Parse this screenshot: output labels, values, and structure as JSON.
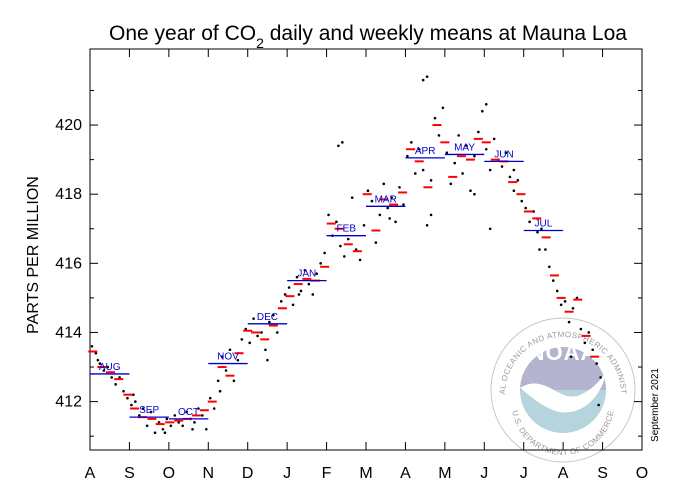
{
  "chart_data": {
    "type": "scatter",
    "title_prefix": "One year of CO",
    "title_sub": "2",
    "title_suffix": " daily and weekly means at Mauna Loa",
    "ylabel": "PARTS PER MILLION",
    "xlabel": "",
    "ylim": [
      410.6,
      422.2
    ],
    "yticks": [
      412,
      414,
      416,
      418,
      420
    ],
    "x_ticks": [
      "A",
      "S",
      "O",
      "N",
      "D",
      "J",
      "F",
      "M",
      "A",
      "M",
      "J",
      "J",
      "A",
      "S",
      "O"
    ],
    "monthly_means": [
      {
        "label": "AUG",
        "start": 0.0,
        "end": 1.0,
        "value": 412.8
      },
      {
        "label": "SEP",
        "start": 1.0,
        "end": 2.0,
        "value": 411.55
      },
      {
        "label": "OCT",
        "start": 2.0,
        "end": 3.0,
        "value": 411.5
      },
      {
        "label": "NOV",
        "start": 3.0,
        "end": 4.0,
        "value": 413.1
      },
      {
        "label": "DEC",
        "start": 4.0,
        "end": 5.0,
        "value": 414.25
      },
      {
        "label": "JAN",
        "start": 5.0,
        "end": 6.0,
        "value": 415.5
      },
      {
        "label": "FEB",
        "start": 6.0,
        "end": 7.0,
        "value": 416.8
      },
      {
        "label": "MAR",
        "start": 7.0,
        "end": 8.0,
        "value": 417.65
      },
      {
        "label": "APR",
        "start": 8.0,
        "end": 9.0,
        "value": 419.05
      },
      {
        "label": "MAY",
        "start": 9.0,
        "end": 10.0,
        "value": 419.15
      },
      {
        "label": "JUN",
        "start": 10.0,
        "end": 11.0,
        "value": 418.95
      },
      {
        "label": "JUL",
        "start": 11.0,
        "end": 12.0,
        "value": 416.95
      }
    ],
    "weekly_means": [
      [
        0.07,
        413.45
      ],
      [
        0.3,
        413.0
      ],
      [
        0.52,
        412.85
      ],
      [
        0.73,
        412.65
      ],
      [
        0.96,
        412.2
      ],
      [
        1.13,
        411.8
      ],
      [
        1.33,
        411.55
      ],
      [
        1.57,
        411.5
      ],
      [
        1.78,
        411.35
      ],
      [
        2.02,
        411.4
      ],
      [
        2.25,
        411.45
      ],
      [
        2.47,
        411.5
      ],
      [
        2.7,
        411.6
      ],
      [
        2.9,
        411.75
      ],
      [
        3.1,
        412.0
      ],
      [
        3.35,
        413.0
      ],
      [
        3.55,
        412.75
      ],
      [
        3.78,
        413.4
      ],
      [
        4.0,
        414.05
      ],
      [
        4.2,
        414.0
      ],
      [
        4.43,
        413.8
      ],
      [
        4.65,
        414.2
      ],
      [
        4.88,
        414.7
      ],
      [
        5.07,
        415.05
      ],
      [
        5.28,
        415.4
      ],
      [
        5.5,
        415.55
      ],
      [
        5.72,
        415.5
      ],
      [
        5.95,
        415.9
      ],
      [
        6.12,
        417.15
      ],
      [
        6.32,
        417.0
      ],
      [
        6.55,
        416.55
      ],
      [
        6.78,
        416.35
      ],
      [
        7.03,
        418.0
      ],
      [
        7.25,
        416.95
      ],
      [
        7.45,
        417.85
      ],
      [
        7.7,
        417.7
      ],
      [
        7.93,
        418.05
      ],
      [
        8.13,
        419.3
      ],
      [
        8.35,
        418.95
      ],
      [
        8.57,
        418.2
      ],
      [
        8.8,
        420.0
      ],
      [
        9.0,
        419.5
      ],
      [
        9.2,
        418.5
      ],
      [
        9.42,
        419.1
      ],
      [
        9.65,
        419.0
      ],
      [
        9.85,
        419.6
      ],
      [
        10.05,
        419.5
      ],
      [
        10.28,
        419.0
      ],
      [
        10.5,
        418.95
      ],
      [
        10.72,
        418.35
      ],
      [
        10.93,
        418.0
      ],
      [
        11.12,
        417.5
      ],
      [
        11.33,
        417.3
      ],
      [
        11.57,
        416.75
      ],
      [
        11.78,
        415.65
      ],
      [
        11.95,
        415.0
      ],
      [
        12.15,
        414.6
      ],
      [
        12.37,
        414.95
      ],
      [
        12.58,
        413.9
      ],
      [
        12.8,
        413.3
      ]
    ],
    "daily_means": [
      [
        0.05,
        413.6
      ],
      [
        0.15,
        413.4
      ],
      [
        0.25,
        413.1
      ],
      [
        0.35,
        412.9
      ],
      [
        0.45,
        413.0
      ],
      [
        0.55,
        412.7
      ],
      [
        0.65,
        412.5
      ],
      [
        0.75,
        412.7
      ],
      [
        0.85,
        412.3
      ],
      [
        0.95,
        412.1
      ],
      [
        1.05,
        411.9
      ],
      [
        1.15,
        412.0
      ],
      [
        1.25,
        411.6
      ],
      [
        1.35,
        411.8
      ],
      [
        1.45,
        411.3
      ],
      [
        1.55,
        411.7
      ],
      [
        1.65,
        411.1
      ],
      [
        1.75,
        411.4
      ],
      [
        1.85,
        411.2
      ],
      [
        1.95,
        411.5
      ],
      [
        2.05,
        411.3
      ],
      [
        2.15,
        411.6
      ],
      [
        2.25,
        411.4
      ],
      [
        2.35,
        411.3
      ],
      [
        2.45,
        411.7
      ],
      [
        2.55,
        411.5
      ],
      [
        2.65,
        411.4
      ],
      [
        2.75,
        411.8
      ],
      [
        2.85,
        411.6
      ],
      [
        2.95,
        411.2
      ],
      [
        3.05,
        412.1
      ],
      [
        3.15,
        411.8
      ],
      [
        3.25,
        412.6
      ],
      [
        3.35,
        413.3
      ],
      [
        3.45,
        412.9
      ],
      [
        3.55,
        413.5
      ],
      [
        3.65,
        412.6
      ],
      [
        3.75,
        413.2
      ],
      [
        3.85,
        413.8
      ],
      [
        3.95,
        414.1
      ],
      [
        4.05,
        413.7
      ],
      [
        4.15,
        414.4
      ],
      [
        4.25,
        413.9
      ],
      [
        4.35,
        414.0
      ],
      [
        4.45,
        413.5
      ],
      [
        4.55,
        414.3
      ],
      [
        4.65,
        414.5
      ],
      [
        4.75,
        414.0
      ],
      [
        4.85,
        414.9
      ],
      [
        4.95,
        415.1
      ],
      [
        5.05,
        415.3
      ],
      [
        5.15,
        414.8
      ],
      [
        5.25,
        415.6
      ],
      [
        5.35,
        415.2
      ],
      [
        5.45,
        415.8
      ],
      [
        5.55,
        415.4
      ],
      [
        5.65,
        415.1
      ],
      [
        5.75,
        415.7
      ],
      [
        5.85,
        416.0
      ],
      [
        5.95,
        416.3
      ],
      [
        6.05,
        417.4
      ],
      [
        6.15,
        416.8
      ],
      [
        6.25,
        417.2
      ],
      [
        6.35,
        416.5
      ],
      [
        6.45,
        416.2
      ],
      [
        6.55,
        416.7
      ],
      [
        6.65,
        417.9
      ],
      [
        6.75,
        416.4
      ],
      [
        6.85,
        416.1
      ],
      [
        6.95,
        417.1
      ],
      [
        7.05,
        418.1
      ],
      [
        7.15,
        417.8
      ],
      [
        7.25,
        416.6
      ],
      [
        7.35,
        417.4
      ],
      [
        7.45,
        418.3
      ],
      [
        7.55,
        417.6
      ],
      [
        7.65,
        417.9
      ],
      [
        7.75,
        417.2
      ],
      [
        7.85,
        418.2
      ],
      [
        7.95,
        417.7
      ],
      [
        8.05,
        419.1
      ],
      [
        8.15,
        419.5
      ],
      [
        8.25,
        418.6
      ],
      [
        8.35,
        419.3
      ],
      [
        8.45,
        418.7
      ],
      [
        8.55,
        417.1
      ],
      [
        8.65,
        418.4
      ],
      [
        8.75,
        420.2
      ],
      [
        8.85,
        419.7
      ],
      [
        8.95,
        420.5
      ],
      [
        9.05,
        419.2
      ],
      [
        9.15,
        418.3
      ],
      [
        9.25,
        418.9
      ],
      [
        9.35,
        419.7
      ],
      [
        9.45,
        418.6
      ],
      [
        9.55,
        419.4
      ],
      [
        9.65,
        418.1
      ],
      [
        9.75,
        419.1
      ],
      [
        9.85,
        419.8
      ],
      [
        9.95,
        420.4
      ],
      [
        10.05,
        419.3
      ],
      [
        10.15,
        418.7
      ],
      [
        10.25,
        419.6
      ],
      [
        10.35,
        419.0
      ],
      [
        10.45,
        418.8
      ],
      [
        10.55,
        419.2
      ],
      [
        10.65,
        418.5
      ],
      [
        10.75,
        418.1
      ],
      [
        10.85,
        418.4
      ],
      [
        10.95,
        417.8
      ],
      [
        11.05,
        417.6
      ],
      [
        11.15,
        417.2
      ],
      [
        11.25,
        417.5
      ],
      [
        11.35,
        416.9
      ],
      [
        11.45,
        417.0
      ],
      [
        11.55,
        416.4
      ],
      [
        11.65,
        415.9
      ],
      [
        11.75,
        415.5
      ],
      [
        11.85,
        415.2
      ],
      [
        11.95,
        414.8
      ],
      [
        12.05,
        414.9
      ],
      [
        12.15,
        414.3
      ],
      [
        12.25,
        414.7
      ],
      [
        12.35,
        415.0
      ],
      [
        12.45,
        414.1
      ],
      [
        12.55,
        413.7
      ],
      [
        12.65,
        414.0
      ],
      [
        12.75,
        413.5
      ],
      [
        12.85,
        413.1
      ],
      [
        12.95,
        412.7
      ],
      [
        0.2,
        413.2
      ],
      [
        1.1,
        412.2
      ],
      [
        1.9,
        411.1
      ],
      [
        2.6,
        411.2
      ],
      [
        3.3,
        412.3
      ],
      [
        4.5,
        413.2
      ],
      [
        5.3,
        415.1
      ],
      [
        6.3,
        419.4
      ],
      [
        6.4,
        419.5
      ],
      [
        7.6,
        417.3
      ],
      [
        8.45,
        421.3
      ],
      [
        8.55,
        421.4
      ],
      [
        8.65,
        417.4
      ],
      [
        9.75,
        418.0
      ],
      [
        10.05,
        420.6
      ],
      [
        10.15,
        417.0
      ],
      [
        10.75,
        418.7
      ],
      [
        11.4,
        416.4
      ],
      [
        12.2,
        413.3
      ],
      [
        12.9,
        411.9
      ]
    ]
  },
  "credit": "September 2021",
  "logo": {
    "name": "NOAA",
    "ring_top": "NATIONAL OCEANIC AND ATMOSPHERIC ADMINISTRATION",
    "ring_bottom": "U.S. DEPARTMENT OF COMMERCE"
  },
  "colors": {
    "weekly": "#ff0000",
    "monthly": "#0000cc",
    "daily": "#000000",
    "logo_sky": "#a8a8c8",
    "logo_sea": "#a9cdd8"
  }
}
